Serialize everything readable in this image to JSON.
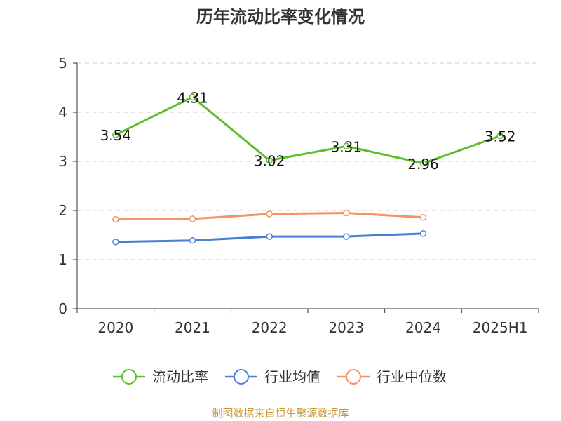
{
  "title": "历年流动比率变化情况",
  "source": "制图数据来自恒生聚源数据库",
  "chart_data": {
    "type": "line",
    "title": "历年流动比率变化情况",
    "categories": [
      "2020",
      "2021",
      "2022",
      "2023",
      "2024",
      "2025H1"
    ],
    "ylim": [
      0,
      5
    ],
    "yticks": [
      0,
      1,
      2,
      3,
      4,
      5
    ],
    "grid": true,
    "legend_position": "bottom",
    "series": [
      {
        "name": "流动比率",
        "color": "#5cbf2a",
        "show_labels": true,
        "values": [
          3.54,
          4.31,
          3.02,
          3.31,
          2.96,
          3.52
        ]
      },
      {
        "name": "行业均值",
        "color": "#4a7fd6",
        "show_labels": false,
        "values": [
          1.36,
          1.39,
          1.47,
          1.47,
          1.53,
          null
        ]
      },
      {
        "name": "行业中位数",
        "color": "#f59263",
        "show_labels": false,
        "values": [
          1.82,
          1.83,
          1.93,
          1.95,
          1.86,
          null
        ]
      }
    ]
  }
}
